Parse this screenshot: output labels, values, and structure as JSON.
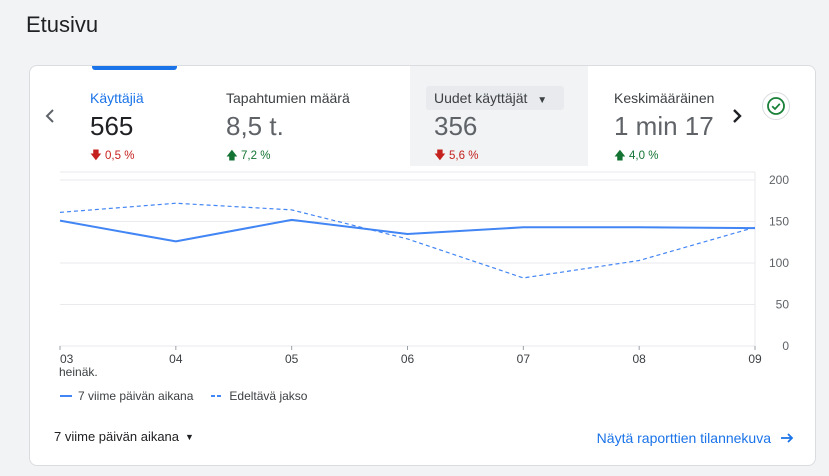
{
  "page": {
    "title": "Etusivu"
  },
  "metrics": [
    {
      "label": "Käyttäjiä",
      "value": "565",
      "delta": "0,5 %",
      "direction": "down",
      "active": true
    },
    {
      "label": "Tapahtumien määrä",
      "value": "8,5 t.",
      "delta": "7,2 %",
      "direction": "up"
    },
    {
      "label": "Uudet käyttäjät",
      "value": "356",
      "delta": "5,6 %",
      "direction": "down",
      "has_dropdown": true
    },
    {
      "label": "Keskimääräinen",
      "value": "1 min 17",
      "delta": "4,0 %",
      "direction": "up"
    }
  ],
  "icons": {
    "prev": "chevron-left-icon",
    "next": "chevron-right-icon",
    "status": "check-circle-icon",
    "dropdown": "arrow-drop-down-icon",
    "link": "arrow-right-icon"
  },
  "colors": {
    "accent": "#1a73e8",
    "series": "#4285f4",
    "down": "#c5221f",
    "up": "#137333",
    "status": "#188038"
  },
  "chart_data": {
    "type": "line",
    "x": [
      "03",
      "04",
      "05",
      "06",
      "07",
      "08",
      "09"
    ],
    "x_sublabel": "heinäk.",
    "y_ticks": [
      "200",
      "150",
      "100",
      "50",
      "0"
    ],
    "ylim": [
      0,
      200
    ],
    "y_tick_values": [
      200,
      150,
      100,
      50,
      0
    ],
    "series": [
      {
        "name": "7 viime päivän aikana",
        "style": "solid",
        "values": [
          151,
          126,
          152,
          135,
          143,
          143,
          142
        ]
      },
      {
        "name": "Edeltävä jakso",
        "style": "dashed",
        "values": [
          161,
          172,
          164,
          129,
          82,
          103,
          143
        ]
      }
    ],
    "grid": true,
    "legend_position": "bottom-left"
  },
  "footer": {
    "period_label": "7 viime päivän aikana",
    "report_link": "Näytä raporttien tilannekuva"
  }
}
